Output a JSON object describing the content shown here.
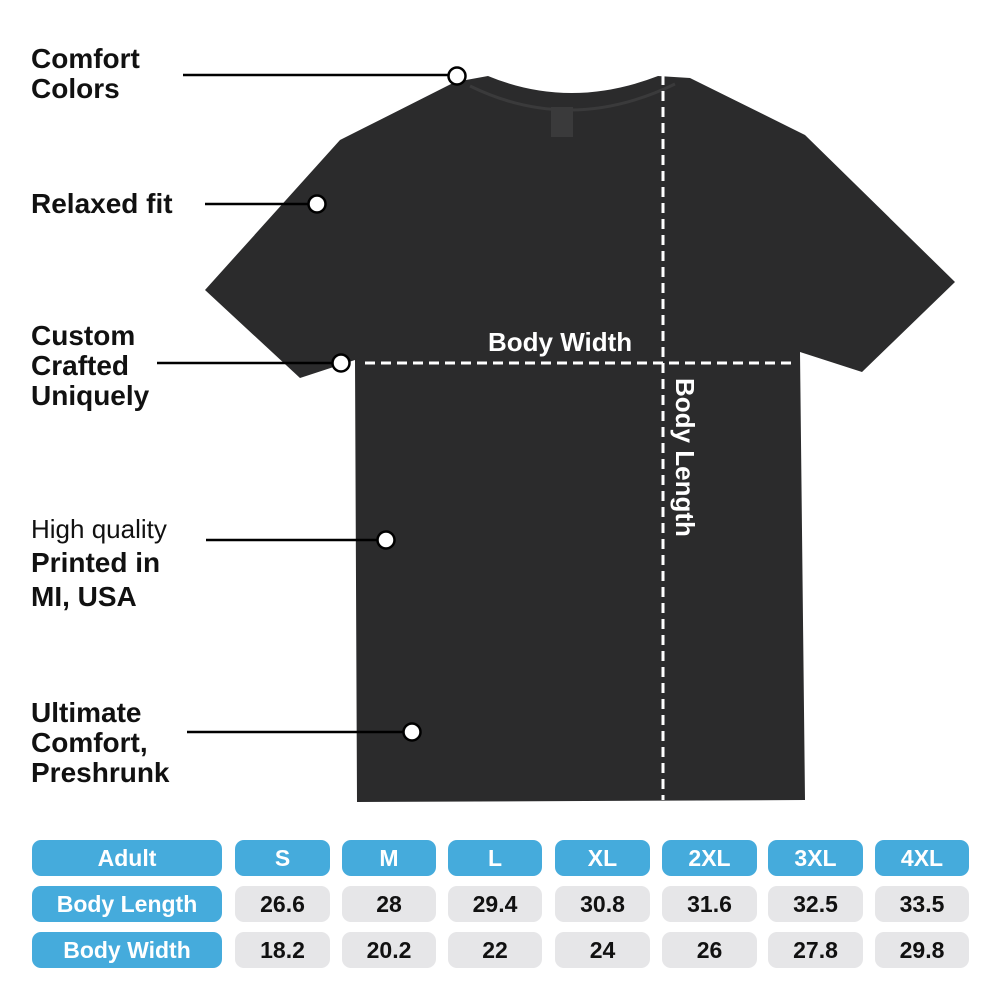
{
  "features": [
    {
      "lines": [
        "Comfort",
        "Colors"
      ]
    },
    {
      "lines": [
        "Relaxed fit"
      ]
    },
    {
      "lines": [
        "Custom",
        "Crafted",
        "Uniquely"
      ]
    },
    {
      "lines_regular": [
        "High quality"
      ],
      "lines": [
        "Printed in",
        "MI, USA"
      ]
    },
    {
      "lines": [
        "Ultimate",
        "Comfort,",
        "Preshrunk"
      ]
    }
  ],
  "measure_labels": {
    "width": "Body Width",
    "length": "Body Length"
  },
  "colors": {
    "header": "#45abdc",
    "cell": "#e6e6e8",
    "shirt": "#2b2b2c"
  },
  "size_chart": {
    "header": [
      "Adult",
      "S",
      "M",
      "L",
      "XL",
      "2XL",
      "3XL",
      "4XL"
    ],
    "rows": [
      [
        "Body Length",
        "26.6",
        "28",
        "29.4",
        "30.8",
        "31.6",
        "32.5",
        "33.5"
      ],
      [
        "Body Width",
        "18.2",
        "20.2",
        "22",
        "24",
        "26",
        "27.8",
        "29.8"
      ]
    ]
  }
}
